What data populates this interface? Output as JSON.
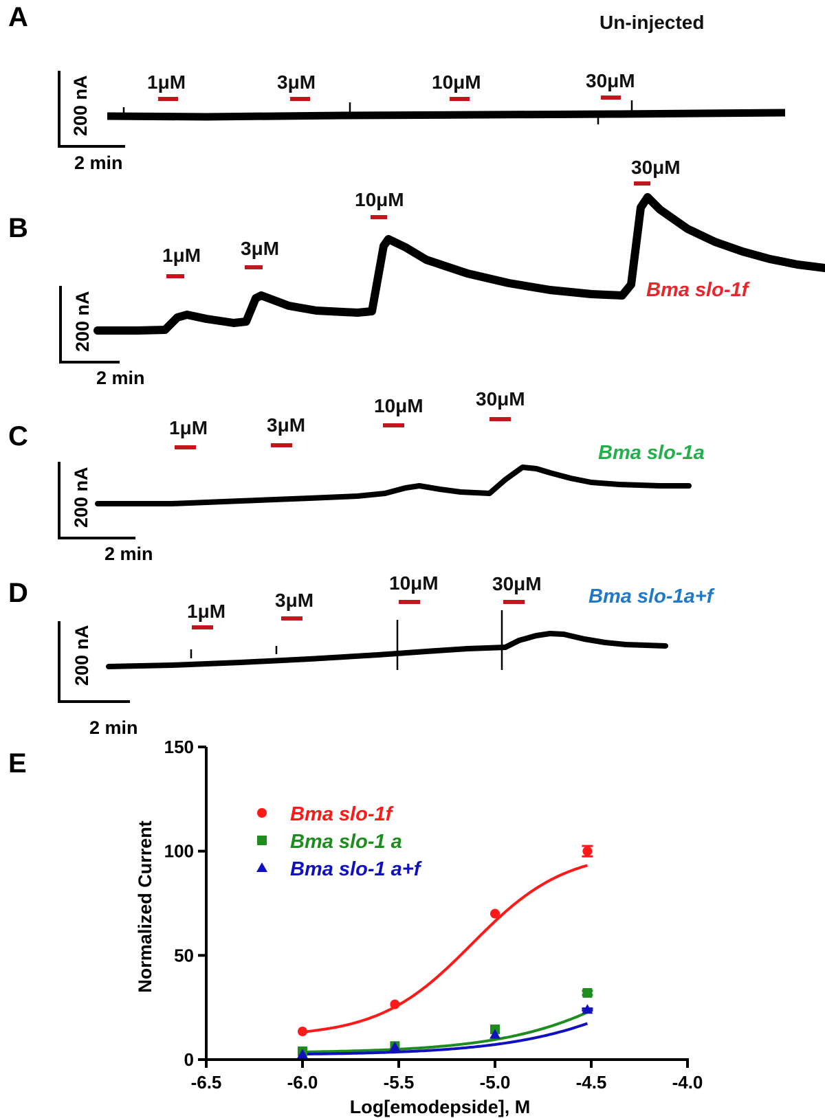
{
  "panels": {
    "A": {
      "letter": "A",
      "condition": "Un-injected",
      "scale_current": "200 nA",
      "scale_time": "2 min",
      "concentrations": [
        "1μM",
        "3μM",
        "10μM",
        "30μM"
      ]
    },
    "B": {
      "letter": "B",
      "construct": "Bma slo-1f",
      "construct_color": "#e8262b",
      "scale_current": "200 nA",
      "scale_time": "2 min",
      "concentrations": [
        "1μM",
        "3μM",
        "10μM",
        "30μM"
      ]
    },
    "C": {
      "letter": "C",
      "construct": "Bma slo-1a",
      "construct_color": "#22b04b",
      "scale_current": "200 nA",
      "scale_time": "2 min",
      "concentrations": [
        "1μM",
        "3μM",
        "10μM",
        "30μM"
      ]
    },
    "D": {
      "letter": "D",
      "construct": "Bma slo-1a+f",
      "construct_color": "#1f78c8",
      "scale_current": "200 nA",
      "scale_time": "2 min",
      "concentrations": [
        "1μM",
        "3μM",
        "10μM",
        "30μM"
      ]
    },
    "E": {
      "letter": "E"
    }
  },
  "colors": {
    "application_bar": "#c0161c",
    "trace": "#000000"
  },
  "chart_data": {
    "type": "scatter",
    "xlabel": "Log[emodepside], M",
    "ylabel": "Normalized Current",
    "xlim": [
      -6.5,
      -4.0
    ],
    "ylim": [
      0,
      150
    ],
    "xticks": [
      -6.5,
      -6.0,
      -5.5,
      -5.0,
      -4.5,
      -4.0
    ],
    "xtick_labels": [
      "-6.5",
      "-6.0",
      "-5.5",
      "-5.0",
      "-4.5",
      "-4.0"
    ],
    "yticks": [
      0,
      50,
      100,
      150
    ],
    "ytick_labels": [
      "0",
      "50",
      "100",
      "150"
    ],
    "legend_position": "upper-left",
    "series": [
      {
        "name": "Bma slo-1f",
        "color": "#ff1a1a",
        "marker": "circle",
        "x": [
          -6.0,
          -5.52,
          -5.0,
          -4.52
        ],
        "y": [
          13.5,
          26.5,
          70,
          100
        ],
        "error": [
          0,
          0,
          0,
          2.5
        ],
        "fit": {
          "bottom": 11,
          "top": 100,
          "log_ec50": -5.12,
          "hill": 1.8
        }
      },
      {
        "name": "Bma slo-1 a",
        "color": "#1f8c1f",
        "marker": "square",
        "x": [
          -6.0,
          -5.52,
          -5.0,
          -4.52
        ],
        "y": [
          4,
          6.5,
          14.5,
          32
        ],
        "error": [
          0,
          0,
          0,
          1
        ],
        "fit": {
          "bottom": 3.2,
          "top": 100,
          "log_ec50": -4.0,
          "hill": 1.15
        }
      },
      {
        "name": "Bma slo-1 a+f",
        "color": "#1010c0",
        "marker": "triangle",
        "x": [
          -6.0,
          -5.52,
          -5.0,
          -4.52
        ],
        "y": [
          2.5,
          6,
          12,
          24
        ],
        "error": [
          0,
          0,
          0,
          0.5
        ],
        "fit": {
          "bottom": 2.2,
          "top": 100,
          "log_ec50": -3.85,
          "hill": 1.1
        }
      }
    ]
  }
}
